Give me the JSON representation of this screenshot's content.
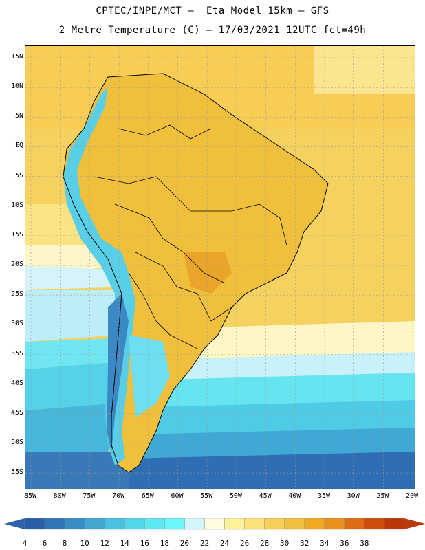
{
  "title_line1": "CPTEC/INPE/MCT –  Eta Model 15km – GFS",
  "title_line2": "2 Metre Temperature (C) – 17/03/2021 12UTC fct=49h",
  "lat_ticks": [
    "15N",
    "10N",
    "5N",
    "EQ",
    "5S",
    "10S",
    "15S",
    "20S",
    "25S",
    "30S",
    "35S",
    "40S",
    "45S",
    "50S",
    "55S"
  ],
  "lon_ticks": [
    "85W",
    "80W",
    "75W",
    "70W",
    "65W",
    "60W",
    "55W",
    "50W",
    "45W",
    "40W",
    "35W",
    "30W",
    "25W",
    "20W"
  ],
  "colorbar": {
    "labels": [
      "4",
      "6",
      "8",
      "10",
      "12",
      "14",
      "16",
      "18",
      "20",
      "22",
      "24",
      "26",
      "28",
      "30",
      "32",
      "34",
      "36",
      "38"
    ],
    "colors": [
      "#2a5ea6",
      "#2f76b7",
      "#3a8cc4",
      "#41a7d2",
      "#4cc0e0",
      "#54d6ea",
      "#5ee8f2",
      "#69f7fa",
      "#d2f4fb",
      "#fefbe0",
      "#fcf29a",
      "#fbe377",
      "#f6cf5a",
      "#f1bf3e",
      "#efaa21",
      "#e88f1c",
      "#dc6b12",
      "#cf4c0b",
      "#bd360a"
    ],
    "low_end_color": "#2f62a8",
    "high_end_color": "#b93a0a"
  }
}
